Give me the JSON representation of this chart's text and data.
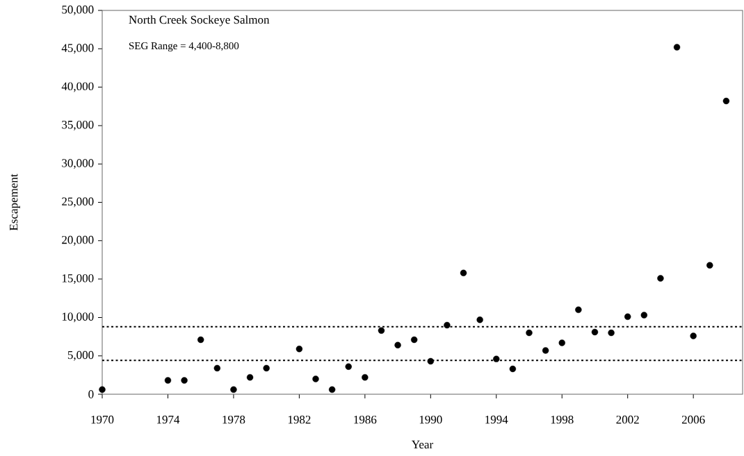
{
  "chart_data": {
    "type": "scatter",
    "xlabel": "Year",
    "ylabel": "Escapement",
    "annotations": [
      "North Creek Sockeye Salmon",
      "SEG Range = 4,400-8,800"
    ],
    "x": [
      1970,
      1974,
      1975,
      1976,
      1977,
      1978,
      1979,
      1980,
      1982,
      1983,
      1984,
      1985,
      1986,
      1987,
      1988,
      1989,
      1990,
      1991,
      1992,
      1993,
      1994,
      1995,
      1996,
      1997,
      1998,
      1999,
      2000,
      2001,
      2002,
      2003,
      2004,
      2005,
      2006,
      2007,
      2008
    ],
    "values": [
      600,
      1800,
      1800,
      7100,
      3400,
      600,
      2200,
      3400,
      5900,
      2000,
      600,
      3600,
      2200,
      8300,
      6400,
      7100,
      4300,
      9000,
      15800,
      9700,
      4600,
      3300,
      8000,
      5700,
      6700,
      11000,
      8100,
      8000,
      10100,
      10300,
      15100,
      45200,
      7600,
      16800,
      38200
    ],
    "color": "#000000",
    "marker": "circle",
    "xlim": [
      1970,
      2009
    ],
    "xticks": [
      1970,
      1974,
      1978,
      1982,
      1986,
      1990,
      1994,
      1998,
      2002,
      2006
    ],
    "ylim": [
      0,
      50000
    ],
    "yticks": [
      {
        "value": 0,
        "label": "0"
      },
      {
        "value": 5000,
        "label": "5,000"
      },
      {
        "value": 10000,
        "label": "10,000"
      },
      {
        "value": 15000,
        "label": "15,000"
      },
      {
        "value": 20000,
        "label": "20,000"
      },
      {
        "value": 25000,
        "label": "25,000"
      },
      {
        "value": 30000,
        "label": "30,000"
      },
      {
        "value": 35000,
        "label": "35,000"
      },
      {
        "value": 40000,
        "label": "40,000"
      },
      {
        "value": 45000,
        "label": "45,000"
      },
      {
        "value": 50000,
        "label": "50,000"
      }
    ],
    "ref_lines": [
      {
        "axis": "y",
        "value": 8800,
        "line_style": "dotted",
        "color": "#000000"
      },
      {
        "axis": "y",
        "value": 4400,
        "line_style": "dotted",
        "color": "#000000"
      }
    ],
    "grid": false
  }
}
